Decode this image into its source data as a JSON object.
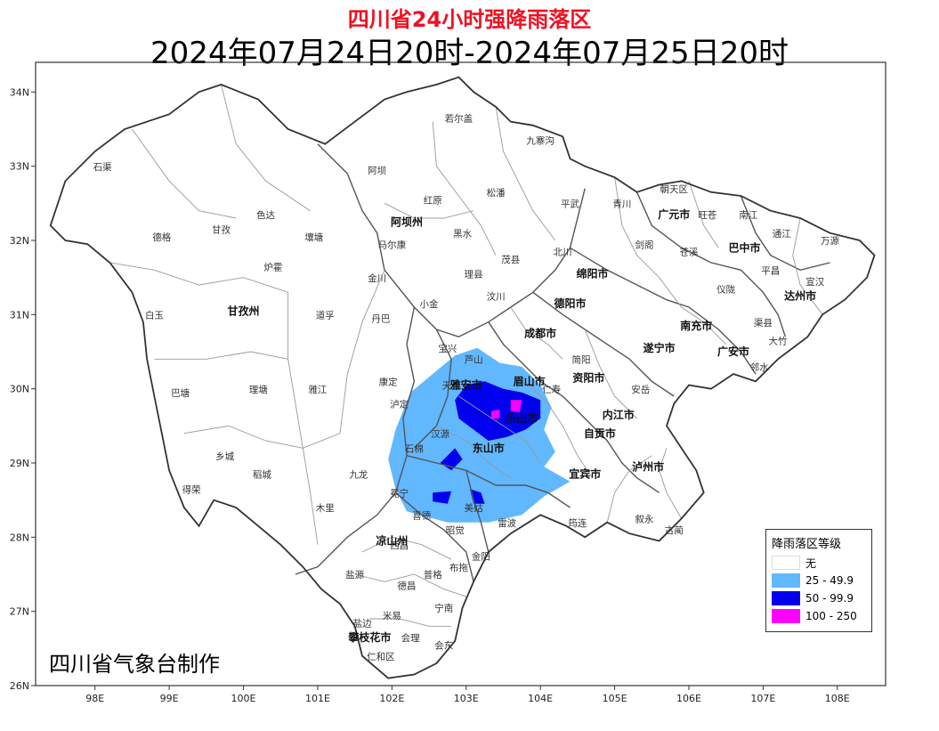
{
  "title": "四川省24小时强降雨落区",
  "subtitle": "2024年07月24日20时-2024年07月25日20时",
  "credit": "四川省气象台制作",
  "axes": {
    "lat_ticks": [
      "26N",
      "27N",
      "28N",
      "29N",
      "30N",
      "31N",
      "32N",
      "33N",
      "34N"
    ],
    "lon_ticks": [
      "98E",
      "99E",
      "100E",
      "101E",
      "102E",
      "103E",
      "104E",
      "105E",
      "106E",
      "107E",
      "108E"
    ]
  },
  "legend": {
    "title": "降雨落区等级",
    "items": [
      {
        "label": "无",
        "color": "#ffffff"
      },
      {
        "label": "25 - 49.9",
        "color": "#61b8ff"
      },
      {
        "label": "50 - 99.9",
        "color": "#0000ee"
      },
      {
        "label": "100 - 250",
        "color": "#ff00ff"
      }
    ]
  },
  "cities": [
    {
      "name": "阿坝州",
      "lon": 102.2,
      "lat": 32.2
    },
    {
      "name": "甘孜州",
      "lon": 100.0,
      "lat": 31.0
    },
    {
      "name": "凉山州",
      "lon": 102.0,
      "lat": 27.9
    },
    {
      "name": "成都市",
      "lon": 104.0,
      "lat": 30.7
    },
    {
      "name": "雅安市",
      "lon": 103.0,
      "lat": 30.0
    },
    {
      "name": "乐山市",
      "lon": 103.75,
      "lat": 29.55
    },
    {
      "name": "眉山市",
      "lon": 103.85,
      "lat": 30.05
    },
    {
      "name": "东山市",
      "lon": 103.3,
      "lat": 29.15
    },
    {
      "name": "德阳市",
      "lon": 104.4,
      "lat": 31.1
    },
    {
      "name": "绵阳市",
      "lon": 104.7,
      "lat": 31.5
    },
    {
      "name": "广元市",
      "lon": 105.8,
      "lat": 32.3
    },
    {
      "name": "巴中市",
      "lon": 106.75,
      "lat": 31.85
    },
    {
      "name": "达州市",
      "lon": 107.5,
      "lat": 31.2
    },
    {
      "name": "南充市",
      "lon": 106.1,
      "lat": 30.8
    },
    {
      "name": "遂宁市",
      "lon": 105.6,
      "lat": 30.5
    },
    {
      "name": "资阳市",
      "lon": 104.65,
      "lat": 30.1
    },
    {
      "name": "内江市",
      "lon": 105.05,
      "lat": 29.6
    },
    {
      "name": "自贡市",
      "lon": 104.8,
      "lat": 29.35
    },
    {
      "name": "宜宾市",
      "lon": 104.6,
      "lat": 28.8
    },
    {
      "name": "泸州市",
      "lon": 105.45,
      "lat": 28.9
    },
    {
      "name": "广安市",
      "lon": 106.6,
      "lat": 30.45
    },
    {
      "name": "攀枝花市",
      "lon": 101.7,
      "lat": 26.6
    }
  ],
  "counties": [
    {
      "name": "石渠",
      "lon": 98.1,
      "lat": 32.95
    },
    {
      "name": "若尔盖",
      "lon": 102.9,
      "lat": 33.6
    },
    {
      "name": "九寨沟",
      "lon": 104.0,
      "lat": 33.3
    },
    {
      "name": "阿坝",
      "lon": 101.8,
      "lat": 32.9
    },
    {
      "name": "色达",
      "lon": 100.3,
      "lat": 32.3
    },
    {
      "name": "德格",
      "lon": 98.9,
      "lat": 32.0
    },
    {
      "name": "甘孜",
      "lon": 99.7,
      "lat": 32.1
    },
    {
      "name": "红原",
      "lon": 102.55,
      "lat": 32.5
    },
    {
      "name": "松潘",
      "lon": 103.4,
      "lat": 32.6
    },
    {
      "name": "平武",
      "lon": 104.4,
      "lat": 32.45
    },
    {
      "name": "青川",
      "lon": 105.1,
      "lat": 32.45
    },
    {
      "name": "朝天区",
      "lon": 105.8,
      "lat": 32.65
    },
    {
      "name": "旺苍",
      "lon": 106.25,
      "lat": 32.3
    },
    {
      "name": "南江",
      "lon": 106.8,
      "lat": 32.3
    },
    {
      "name": "通江",
      "lon": 107.25,
      "lat": 32.05
    },
    {
      "name": "万源",
      "lon": 107.9,
      "lat": 31.95
    },
    {
      "name": "壤塘",
      "lon": 100.95,
      "lat": 32.0
    },
    {
      "name": "马尔康",
      "lon": 102.0,
      "lat": 31.9
    },
    {
      "name": "黑水",
      "lon": 102.95,
      "lat": 32.05
    },
    {
      "name": "茂县",
      "lon": 103.6,
      "lat": 31.7
    },
    {
      "name": "北川",
      "lon": 104.3,
      "lat": 31.8
    },
    {
      "name": "剑阁",
      "lon": 105.4,
      "lat": 31.9
    },
    {
      "name": "苍溪",
      "lon": 106.0,
      "lat": 31.8
    },
    {
      "name": "炉霍",
      "lon": 100.4,
      "lat": 31.6
    },
    {
      "name": "金川",
      "lon": 101.8,
      "lat": 31.45
    },
    {
      "name": "理县",
      "lon": 103.1,
      "lat": 31.5
    },
    {
      "name": "汶川",
      "lon": 103.4,
      "lat": 31.2
    },
    {
      "name": "平昌",
      "lon": 107.1,
      "lat": 31.55
    },
    {
      "name": "宣汉",
      "lon": 107.7,
      "lat": 31.4
    },
    {
      "name": "白玉",
      "lon": 98.8,
      "lat": 30.95
    },
    {
      "name": "道孚",
      "lon": 101.1,
      "lat": 30.95
    },
    {
      "name": "丹巴",
      "lon": 101.85,
      "lat": 30.9
    },
    {
      "name": "小金",
      "lon": 102.5,
      "lat": 31.1
    },
    {
      "name": "仪陇",
      "lon": 106.5,
      "lat": 31.3
    },
    {
      "name": "渠县",
      "lon": 107.0,
      "lat": 30.85
    },
    {
      "name": "大竹",
      "lon": 107.2,
      "lat": 30.6
    },
    {
      "name": "邻水",
      "lon": 106.95,
      "lat": 30.25
    },
    {
      "name": "宝兴",
      "lon": 102.75,
      "lat": 30.5
    },
    {
      "name": "芦山",
      "lon": 103.1,
      "lat": 30.35
    },
    {
      "name": "简阳",
      "lon": 104.55,
      "lat": 30.35
    },
    {
      "name": "安岳",
      "lon": 105.35,
      "lat": 29.95
    },
    {
      "name": "巴塘",
      "lon": 99.15,
      "lat": 29.9
    },
    {
      "name": "理塘",
      "lon": 100.2,
      "lat": 29.95
    },
    {
      "name": "雅江",
      "lon": 101.0,
      "lat": 29.95
    },
    {
      "name": "康定",
      "lon": 101.95,
      "lat": 30.05
    },
    {
      "name": "天全",
      "lon": 102.8,
      "lat": 30.0
    },
    {
      "name": "泸定",
      "lon": 102.1,
      "lat": 29.75
    },
    {
      "name": "仁寿",
      "lon": 104.15,
      "lat": 29.95
    },
    {
      "name": "汉源",
      "lon": 102.65,
      "lat": 29.35
    },
    {
      "name": "石棉",
      "lon": 102.3,
      "lat": 29.15
    },
    {
      "name": "乡城",
      "lon": 99.75,
      "lat": 29.05
    },
    {
      "name": "稻城",
      "lon": 100.25,
      "lat": 28.8
    },
    {
      "name": "九龙",
      "lon": 101.55,
      "lat": 28.8
    },
    {
      "name": "得荣",
      "lon": 99.3,
      "lat": 28.6
    },
    {
      "name": "冕宁",
      "lon": 102.1,
      "lat": 28.55
    },
    {
      "name": "木里",
      "lon": 101.1,
      "lat": 28.35
    },
    {
      "name": "美姑",
      "lon": 103.1,
      "lat": 28.35
    },
    {
      "name": "雷波",
      "lon": 103.55,
      "lat": 28.15
    },
    {
      "name": "筠连",
      "lon": 104.5,
      "lat": 28.15
    },
    {
      "name": "叙永",
      "lon": 105.4,
      "lat": 28.2
    },
    {
      "name": "古蔺",
      "lon": 105.8,
      "lat": 28.05
    },
    {
      "name": "喜德",
      "lon": 102.4,
      "lat": 28.25
    },
    {
      "name": "昭觉",
      "lon": 102.85,
      "lat": 28.05
    },
    {
      "name": "盐源",
      "lon": 101.5,
      "lat": 27.45
    },
    {
      "name": "西昌",
      "lon": 102.1,
      "lat": 27.85
    },
    {
      "name": "普格",
      "lon": 102.55,
      "lat": 27.45
    },
    {
      "name": "布拖",
      "lon": 102.9,
      "lat": 27.55
    },
    {
      "name": "金阳",
      "lon": 103.2,
      "lat": 27.7
    },
    {
      "name": "德昌",
      "lon": 102.2,
      "lat": 27.3
    },
    {
      "name": "米易",
      "lon": 102.0,
      "lat": 26.9
    },
    {
      "name": "宁南",
      "lon": 102.7,
      "lat": 27.0
    },
    {
      "name": "盐边",
      "lon": 101.6,
      "lat": 26.8
    },
    {
      "name": "会理",
      "lon": 102.25,
      "lat": 26.6
    },
    {
      "name": "会东",
      "lon": 102.7,
      "lat": 26.5
    },
    {
      "name": "仁和区",
      "lon": 101.85,
      "lat": 26.35
    }
  ],
  "rain_areas": [
    {
      "level": "25 - 49.9",
      "color": "#61b8ff",
      "polygon": [
        [
          102.05,
          29.45
        ],
        [
          102.25,
          29.95
        ],
        [
          102.55,
          30.2
        ],
        [
          102.85,
          30.45
        ],
        [
          103.15,
          30.55
        ],
        [
          103.45,
          30.35
        ],
        [
          103.75,
          30.3
        ],
        [
          104.0,
          30.05
        ],
        [
          104.15,
          29.75
        ],
        [
          104.05,
          29.45
        ],
        [
          104.2,
          29.15
        ],
        [
          104.05,
          28.95
        ],
        [
          104.4,
          28.75
        ],
        [
          104.05,
          28.55
        ],
        [
          103.75,
          28.3
        ],
        [
          103.3,
          28.2
        ],
        [
          102.75,
          28.2
        ],
        [
          102.2,
          28.35
        ],
        [
          102.05,
          28.65
        ],
        [
          101.95,
          29.05
        ]
      ]
    },
    {
      "level": "50 - 99.9",
      "color": "#0000ee",
      "polygon": [
        [
          102.85,
          29.85
        ],
        [
          103.0,
          30.05
        ],
        [
          103.25,
          30.1
        ],
        [
          103.5,
          30.0
        ],
        [
          103.75,
          29.95
        ],
        [
          104.0,
          29.85
        ],
        [
          104.0,
          29.6
        ],
        [
          103.8,
          29.45
        ],
        [
          103.55,
          29.35
        ],
        [
          103.3,
          29.3
        ],
        [
          103.1,
          29.45
        ],
        [
          102.9,
          29.6
        ]
      ]
    },
    {
      "level": "50 - 99.9",
      "color": "#0000ee",
      "polygon": [
        [
          102.65,
          29.0
        ],
        [
          102.85,
          29.2
        ],
        [
          102.95,
          29.05
        ],
        [
          102.8,
          28.9
        ]
      ]
    },
    {
      "level": "50 - 99.9",
      "color": "#0000ee",
      "polygon": [
        [
          102.55,
          28.6
        ],
        [
          102.8,
          28.62
        ],
        [
          102.75,
          28.45
        ],
        [
          102.55,
          28.48
        ]
      ]
    },
    {
      "level": "50 - 99.9",
      "color": "#0000ee",
      "polygon": [
        [
          103.05,
          28.65
        ],
        [
          103.2,
          28.6
        ],
        [
          103.25,
          28.45
        ],
        [
          103.1,
          28.45
        ]
      ]
    },
    {
      "level": "100 - 250",
      "color": "#ff00ff",
      "polygon": [
        [
          103.6,
          29.85
        ],
        [
          103.75,
          29.85
        ],
        [
          103.72,
          29.68
        ],
        [
          103.6,
          29.7
        ]
      ]
    },
    {
      "level": "100 - 250",
      "color": "#ff00ff",
      "polygon": [
        [
          103.34,
          29.7
        ],
        [
          103.45,
          29.72
        ],
        [
          103.45,
          29.6
        ],
        [
          103.34,
          29.6
        ]
      ]
    }
  ]
}
